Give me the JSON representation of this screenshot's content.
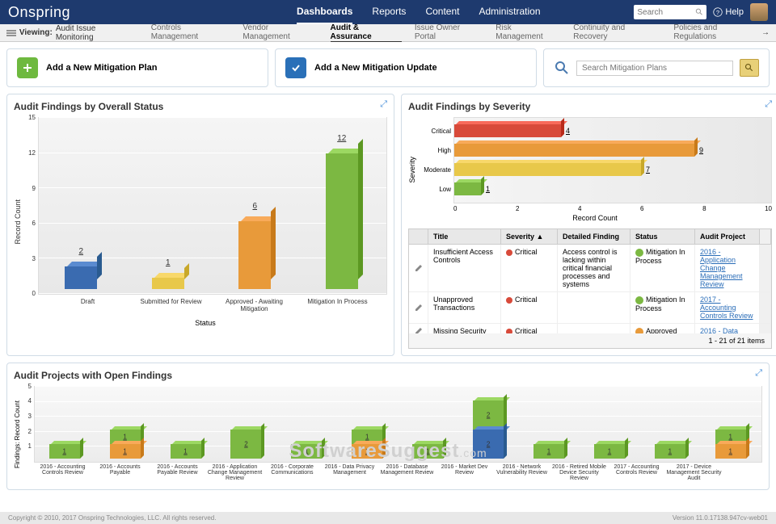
{
  "brand": "Onspring",
  "topnav": {
    "items": [
      "Dashboards",
      "Reports",
      "Content",
      "Administration"
    ],
    "active": "Dashboards",
    "search_placeholder": "Search",
    "help": "Help"
  },
  "subnav": {
    "viewing_label": "Viewing:",
    "viewing_value": "Audit Issue Monitoring",
    "items": [
      "Controls Management",
      "Vendor Management",
      "Audit & Assurance",
      "Issue Owner Portal",
      "Risk Management",
      "Continuity and Recovery",
      "Policies and Regulations"
    ],
    "active": "Audit & Assurance"
  },
  "actions": {
    "add_plan": "Add a New Mitigation Plan",
    "add_update": "Add a New Mitigation Update",
    "search_placeholder": "Search Mitigation Plans"
  },
  "panel1": {
    "title": "Audit Findings by Overall Status",
    "ylabel": "Record Count",
    "xlabel": "Status",
    "ymax": 15,
    "ytick_step": 3,
    "categories": [
      "Draft",
      "Submitted for Review",
      "Approved - Awaiting Mitigation",
      "Mitigation In Process"
    ],
    "values": [
      2,
      1,
      6,
      12
    ],
    "colors": [
      "#3a6bb0",
      "#e8c84a",
      "#e89a3a",
      "#7cb842"
    ],
    "colors_top": [
      "#5a8bd0",
      "#f8d86a",
      "#f8aa5a",
      "#9cd862"
    ],
    "colors_side": [
      "#2a5b90",
      "#c8a82a",
      "#c87a1a",
      "#5c9822"
    ]
  },
  "panel2": {
    "title": "Audit Findings by Severity",
    "ylabel": "Severity",
    "xlabel": "Record Count",
    "xmax": 10,
    "xtick_step": 2,
    "categories": [
      "Critical",
      "High",
      "Moderate",
      "Low"
    ],
    "values": [
      4,
      9,
      7,
      1
    ],
    "colors": [
      "#d84a3a",
      "#e89a3a",
      "#e8c84a",
      "#7cb842"
    ],
    "colors_top": [
      "#f86a5a",
      "#f8aa5a",
      "#f8d86a",
      "#9cd862"
    ],
    "colors_side": [
      "#b82a1a",
      "#c87a1a",
      "#c8a82a",
      "#5c9822"
    ]
  },
  "table": {
    "columns": [
      "Title",
      "Severity",
      "Detailed Finding",
      "Status",
      "Audit Project"
    ],
    "sort_col": "Severity",
    "rows": [
      {
        "title": "Insufficient Access Controls",
        "severity": "Critical",
        "sev_color": "#d84a3a",
        "detail": "Access control is lacking within critical financial processes and systems",
        "status": "Mitigation In Process",
        "stat_color": "#7cb842",
        "project": "2016 - Application Change Management Review"
      },
      {
        "title": "Unapproved Transactions",
        "severity": "Critical",
        "sev_color": "#d84a3a",
        "detail": "",
        "status": "Mitigation In Process",
        "stat_color": "#7cb842",
        "project": "2017 - Accounting Controls Review"
      },
      {
        "title": "Missing Security",
        "severity": "Critical",
        "sev_color": "#d84a3a",
        "detail": "",
        "status": "Approved",
        "stat_color": "#e89a3a",
        "project": "2016 - Data"
      }
    ],
    "footer": "1 - 21 of 21 items"
  },
  "panel3": {
    "title": "Audit Projects with Open Findings",
    "ylabel": "Findings: Record Count",
    "ymax": 5,
    "projects": [
      {
        "name": "2016 - Accounting Controls Review",
        "stacks": [
          {
            "v": 1,
            "c": "#7cb842",
            "ct": "#9cd862",
            "cs": "#5c9822"
          }
        ]
      },
      {
        "name": "2016 - Accounts Payable",
        "stacks": [
          {
            "v": 1,
            "c": "#e89a3a",
            "ct": "#f8aa5a",
            "cs": "#c87a1a"
          },
          {
            "v": 1,
            "c": "#7cb842",
            "ct": "#9cd862",
            "cs": "#5c9822"
          }
        ]
      },
      {
        "name": "2016 - Accounts Payable Review",
        "stacks": [
          {
            "v": 1,
            "c": "#7cb842",
            "ct": "#9cd862",
            "cs": "#5c9822"
          }
        ]
      },
      {
        "name": "2016 - Application Change Management Review",
        "stacks": [
          {
            "v": 2,
            "c": "#7cb842",
            "ct": "#9cd862",
            "cs": "#5c9822"
          }
        ]
      },
      {
        "name": "2016 - Corporate Communications",
        "stacks": [
          {
            "v": 1,
            "c": "#7cb842",
            "ct": "#9cd862",
            "cs": "#5c9822"
          }
        ]
      },
      {
        "name": "2016 - Data Privacy Management",
        "stacks": [
          {
            "v": 1,
            "c": "#e89a3a",
            "ct": "#f8aa5a",
            "cs": "#c87a1a"
          },
          {
            "v": 1,
            "c": "#7cb842",
            "ct": "#9cd862",
            "cs": "#5c9822"
          }
        ]
      },
      {
        "name": "2016 - Database Management Review",
        "stacks": [
          {
            "v": 1,
            "c": "#7cb842",
            "ct": "#9cd862",
            "cs": "#5c9822"
          }
        ]
      },
      {
        "name": "2016 - Market Dev Review",
        "stacks": [
          {
            "v": 2,
            "c": "#3a6bb0",
            "ct": "#5a8bd0",
            "cs": "#2a5b90"
          },
          {
            "v": 2,
            "c": "#7cb842",
            "ct": "#9cd862",
            "cs": "#5c9822"
          }
        ]
      },
      {
        "name": "2016 - Network Vulnerability Review",
        "stacks": [
          {
            "v": 1,
            "c": "#7cb842",
            "ct": "#9cd862",
            "cs": "#5c9822"
          }
        ]
      },
      {
        "name": "2016 - Retired Mobile Device Security Review",
        "stacks": [
          {
            "v": 1,
            "c": "#7cb842",
            "ct": "#9cd862",
            "cs": "#5c9822"
          }
        ]
      },
      {
        "name": "2017 - Accounting Controls Review",
        "stacks": [
          {
            "v": 1,
            "c": "#7cb842",
            "ct": "#9cd862",
            "cs": "#5c9822"
          }
        ]
      },
      {
        "name": "2017 - Device Management Security Audit",
        "stacks": [
          {
            "v": 1,
            "c": "#e89a3a",
            "ct": "#f8aa5a",
            "cs": "#c87a1a"
          },
          {
            "v": 1,
            "c": "#7cb842",
            "ct": "#9cd862",
            "cs": "#5c9822"
          }
        ]
      }
    ]
  },
  "watermark": "SoftwareSuggest",
  "watermark_suffix": ".com",
  "footer": {
    "copyright": "Copyright © 2010, 2017 Onspring Technologies, LLC. All rights reserved.",
    "version": "Version 11.0.17138.947cv-web01"
  }
}
